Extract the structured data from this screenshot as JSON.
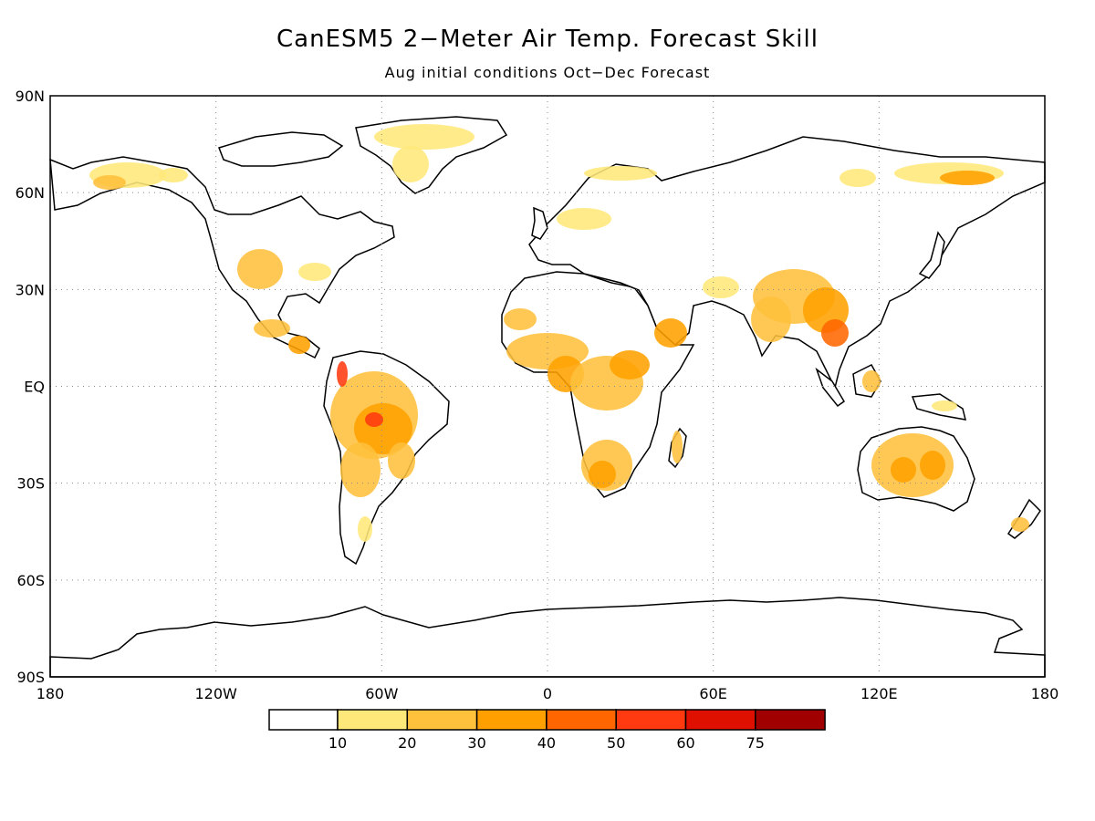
{
  "title": "CanESM5 2−Meter Air Temp. Forecast Skill",
  "subtitle": "Aug initial conditions   Oct−Dec Forecast",
  "map": {
    "lat_ticks": [
      "90N",
      "60N",
      "30N",
      "EQ",
      "30S",
      "60S",
      "90S"
    ],
    "lon_ticks": [
      "180",
      "120W",
      "60W",
      "0",
      "60E",
      "120E",
      "180"
    ],
    "land_color": "#ffffff",
    "ocean_color": "#ffffff",
    "gridlines": "dotted gray"
  },
  "legend": {
    "labels": [
      "10",
      "20",
      "30",
      "40",
      "50",
      "60",
      "75"
    ],
    "colors": [
      "#ffffff",
      "#ffe87a",
      "#ffc03c",
      "#ffa000",
      "#ff6600",
      "#ff3a10",
      "#e01000",
      "#a00000"
    ]
  }
}
